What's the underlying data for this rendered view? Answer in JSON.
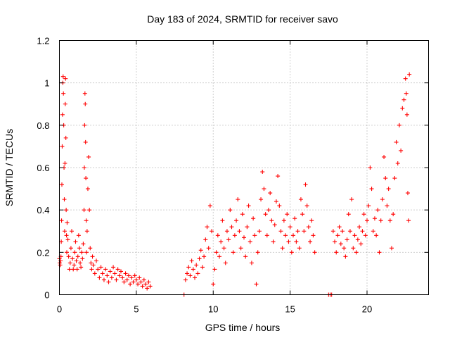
{
  "chart_data": {
    "type": "scatter",
    "title": "Day 183 of 2024, SRMTID for receiver savo",
    "xlabel": "GPS time / hours",
    "ylabel": "SRMTID / TECUs",
    "xlim": [
      0,
      24
    ],
    "ylim": [
      0,
      1.2
    ],
    "xticks": [
      0,
      5,
      10,
      15,
      20
    ],
    "xtick_labels": [
      "0",
      "5",
      "10",
      "15",
      "20"
    ],
    "yticks": [
      0,
      0.2,
      0.4,
      0.6,
      0.8,
      1.0,
      1.2
    ],
    "ytick_labels": [
      "0",
      "0.2",
      "0.4",
      "0.6",
      "0.8",
      "1",
      "1.2"
    ],
    "grid": true,
    "marker": "plus",
    "series": [
      {
        "name": "SRMTID",
        "color": "#ff0000",
        "points": [
          [
            0.0,
            0.17
          ],
          [
            0.02,
            0.15
          ],
          [
            0.05,
            0.14
          ],
          [
            0.08,
            0.16
          ],
          [
            0.1,
            0.18
          ],
          [
            0.12,
            0.25
          ],
          [
            0.14,
            0.35
          ],
          [
            0.16,
            0.52
          ],
          [
            0.18,
            0.7
          ],
          [
            0.2,
            0.85
          ],
          [
            0.22,
            1.0
          ],
          [
            0.24,
            1.03
          ],
          [
            0.26,
            0.95
          ],
          [
            0.28,
            0.8
          ],
          [
            0.3,
            0.6
          ],
          [
            0.32,
            0.45
          ],
          [
            0.34,
            0.3
          ],
          [
            0.36,
            0.62
          ],
          [
            0.38,
            0.9
          ],
          [
            0.4,
            1.02
          ],
          [
            0.42,
            0.74
          ],
          [
            0.44,
            0.4
          ],
          [
            0.46,
            0.28
          ],
          [
            0.48,
            0.2
          ],
          [
            0.5,
            0.34
          ],
          [
            0.55,
            0.26
          ],
          [
            0.6,
            0.18
          ],
          [
            0.65,
            0.12
          ],
          [
            0.7,
            0.15
          ],
          [
            0.75,
            0.22
          ],
          [
            0.8,
            0.3
          ],
          [
            0.85,
            0.17
          ],
          [
            0.9,
            0.12
          ],
          [
            0.95,
            0.14
          ],
          [
            1.0,
            0.2
          ],
          [
            1.05,
            0.25
          ],
          [
            1.1,
            0.16
          ],
          [
            1.15,
            0.12
          ],
          [
            1.2,
            0.18
          ],
          [
            1.25,
            0.28
          ],
          [
            1.3,
            0.22
          ],
          [
            1.35,
            0.15
          ],
          [
            1.4,
            0.13
          ],
          [
            1.45,
            0.2
          ],
          [
            1.5,
            0.17
          ],
          [
            1.55,
            0.24
          ],
          [
            1.6,
            0.4
          ],
          [
            1.62,
            0.6
          ],
          [
            1.64,
            0.8
          ],
          [
            1.66,
            0.95
          ],
          [
            1.68,
            0.9
          ],
          [
            1.7,
            0.72
          ],
          [
            1.72,
            0.55
          ],
          [
            1.74,
            0.35
          ],
          [
            1.76,
            0.2
          ],
          [
            1.8,
            0.3
          ],
          [
            1.85,
            0.5
          ],
          [
            1.9,
            0.65
          ],
          [
            1.95,
            0.4
          ],
          [
            2.0,
            0.22
          ],
          [
            2.05,
            0.15
          ],
          [
            2.1,
            0.12
          ],
          [
            2.15,
            0.18
          ],
          [
            2.2,
            0.14
          ],
          [
            2.3,
            0.1
          ],
          [
            2.4,
            0.16
          ],
          [
            2.5,
            0.12
          ],
          [
            2.6,
            0.08
          ],
          [
            2.7,
            0.13
          ],
          [
            2.8,
            0.1
          ],
          [
            2.9,
            0.07
          ],
          [
            3.0,
            0.12
          ],
          [
            3.1,
            0.09
          ],
          [
            3.2,
            0.06
          ],
          [
            3.3,
            0.11
          ],
          [
            3.4,
            0.08
          ],
          [
            3.5,
            0.13
          ],
          [
            3.6,
            0.1
          ],
          [
            3.7,
            0.07
          ],
          [
            3.8,
            0.12
          ],
          [
            3.9,
            0.09
          ],
          [
            4.0,
            0.11
          ],
          [
            4.1,
            0.08
          ],
          [
            4.2,
            0.06
          ],
          [
            4.3,
            0.1
          ],
          [
            4.4,
            0.07
          ],
          [
            4.5,
            0.09
          ],
          [
            4.6,
            0.05
          ],
          [
            4.7,
            0.08
          ],
          [
            4.8,
            0.06
          ],
          [
            4.9,
            0.09
          ],
          [
            5.0,
            0.07
          ],
          [
            5.1,
            0.05
          ],
          [
            5.2,
            0.08
          ],
          [
            5.3,
            0.06
          ],
          [
            5.4,
            0.04
          ],
          [
            5.5,
            0.07
          ],
          [
            5.6,
            0.05
          ],
          [
            5.7,
            0.03
          ],
          [
            5.8,
            0.06
          ],
          [
            5.9,
            0.04
          ],
          [
            8.1,
            0.0
          ],
          [
            8.2,
            0.07
          ],
          [
            8.3,
            0.1
          ],
          [
            8.4,
            0.13
          ],
          [
            8.5,
            0.09
          ],
          [
            8.6,
            0.16
          ],
          [
            8.7,
            0.12
          ],
          [
            8.8,
            0.08
          ],
          [
            8.9,
            0.14
          ],
          [
            9.0,
            0.1
          ],
          [
            9.1,
            0.17
          ],
          [
            9.2,
            0.21
          ],
          [
            9.3,
            0.13
          ],
          [
            9.4,
            0.18
          ],
          [
            9.5,
            0.26
          ],
          [
            9.6,
            0.32
          ],
          [
            9.7,
            0.22
          ],
          [
            9.8,
            0.42
          ],
          [
            9.9,
            0.3
          ],
          [
            10.0,
            0.05
          ],
          [
            10.1,
            0.12
          ],
          [
            10.2,
            0.2
          ],
          [
            10.3,
            0.28
          ],
          [
            10.4,
            0.18
          ],
          [
            10.5,
            0.25
          ],
          [
            10.6,
            0.35
          ],
          [
            10.7,
            0.22
          ],
          [
            10.8,
            0.15
          ],
          [
            10.9,
            0.3
          ],
          [
            11.0,
            0.26
          ],
          [
            11.1,
            0.4
          ],
          [
            11.2,
            0.32
          ],
          [
            11.3,
            0.2
          ],
          [
            11.4,
            0.28
          ],
          [
            11.5,
            0.35
          ],
          [
            11.6,
            0.45
          ],
          [
            11.7,
            0.3
          ],
          [
            11.8,
            0.22
          ],
          [
            11.9,
            0.38
          ],
          [
            12.0,
            0.27
          ],
          [
            12.1,
            0.18
          ],
          [
            12.2,
            0.32
          ],
          [
            12.3,
            0.42
          ],
          [
            12.4,
            0.25
          ],
          [
            12.5,
            0.15
          ],
          [
            12.6,
            0.36
          ],
          [
            12.7,
            0.28
          ],
          [
            12.8,
            0.05
          ],
          [
            12.9,
            0.2
          ],
          [
            13.0,
            0.3
          ],
          [
            13.1,
            0.45
          ],
          [
            13.2,
            0.58
          ],
          [
            13.3,
            0.5
          ],
          [
            13.4,
            0.38
          ],
          [
            13.5,
            0.28
          ],
          [
            13.6,
            0.4
          ],
          [
            13.7,
            0.48
          ],
          [
            13.8,
            0.35
          ],
          [
            13.9,
            0.25
          ],
          [
            14.0,
            0.33
          ],
          [
            14.1,
            0.44
          ],
          [
            14.2,
            0.56
          ],
          [
            14.3,
            0.42
          ],
          [
            14.4,
            0.3
          ],
          [
            14.5,
            0.22
          ],
          [
            14.6,
            0.35
          ],
          [
            14.7,
            0.28
          ],
          [
            14.8,
            0.38
          ],
          [
            14.9,
            0.25
          ],
          [
            15.0,
            0.32
          ],
          [
            15.1,
            0.2
          ],
          [
            15.2,
            0.28
          ],
          [
            15.3,
            0.36
          ],
          [
            15.4,
            0.25
          ],
          [
            15.5,
            0.3
          ],
          [
            15.6,
            0.22
          ],
          [
            15.7,
            0.45
          ],
          [
            15.8,
            0.38
          ],
          [
            15.9,
            0.3
          ],
          [
            16.0,
            0.52
          ],
          [
            16.1,
            0.42
          ],
          [
            16.2,
            0.32
          ],
          [
            16.3,
            0.25
          ],
          [
            16.4,
            0.35
          ],
          [
            16.5,
            0.28
          ],
          [
            16.6,
            0.2
          ],
          [
            17.5,
            0.0
          ],
          [
            17.6,
            0.0
          ],
          [
            17.7,
            0.0
          ],
          [
            17.8,
            0.3
          ],
          [
            17.9,
            0.25
          ],
          [
            18.0,
            0.2
          ],
          [
            18.1,
            0.28
          ],
          [
            18.2,
            0.32
          ],
          [
            18.3,
            0.24
          ],
          [
            18.4,
            0.3
          ],
          [
            18.5,
            0.22
          ],
          [
            18.6,
            0.18
          ],
          [
            18.7,
            0.26
          ],
          [
            18.8,
            0.38
          ],
          [
            18.9,
            0.3
          ],
          [
            19.0,
            0.45
          ],
          [
            19.1,
            0.22
          ],
          [
            19.2,
            0.28
          ],
          [
            19.3,
            0.2
          ],
          [
            19.4,
            0.26
          ],
          [
            19.5,
            0.32
          ],
          [
            19.6,
            0.24
          ],
          [
            19.7,
            0.3
          ],
          [
            19.8,
            0.38
          ],
          [
            19.9,
            0.28
          ],
          [
            20.0,
            0.35
          ],
          [
            20.1,
            0.42
          ],
          [
            20.2,
            0.6
          ],
          [
            20.3,
            0.5
          ],
          [
            20.4,
            0.3
          ],
          [
            20.5,
            0.36
          ],
          [
            20.6,
            0.28
          ],
          [
            20.7,
            0.4
          ],
          [
            20.8,
            0.2
          ],
          [
            20.9,
            0.35
          ],
          [
            21.0,
            0.45
          ],
          [
            21.1,
            0.65
          ],
          [
            21.2,
            0.55
          ],
          [
            21.3,
            0.42
          ],
          [
            21.4,
            0.5
          ],
          [
            21.5,
            0.35
          ],
          [
            21.6,
            0.22
          ],
          [
            21.7,
            0.38
          ],
          [
            21.8,
            0.55
          ],
          [
            21.9,
            0.72
          ],
          [
            22.0,
            0.62
          ],
          [
            22.1,
            0.8
          ],
          [
            22.2,
            0.68
          ],
          [
            22.3,
            0.88
          ],
          [
            22.4,
            0.92
          ],
          [
            22.5,
            1.02
          ],
          [
            22.55,
            0.95
          ],
          [
            22.6,
            0.85
          ],
          [
            22.65,
            0.48
          ],
          [
            22.7,
            0.35
          ],
          [
            22.75,
            1.04
          ]
        ]
      }
    ]
  }
}
